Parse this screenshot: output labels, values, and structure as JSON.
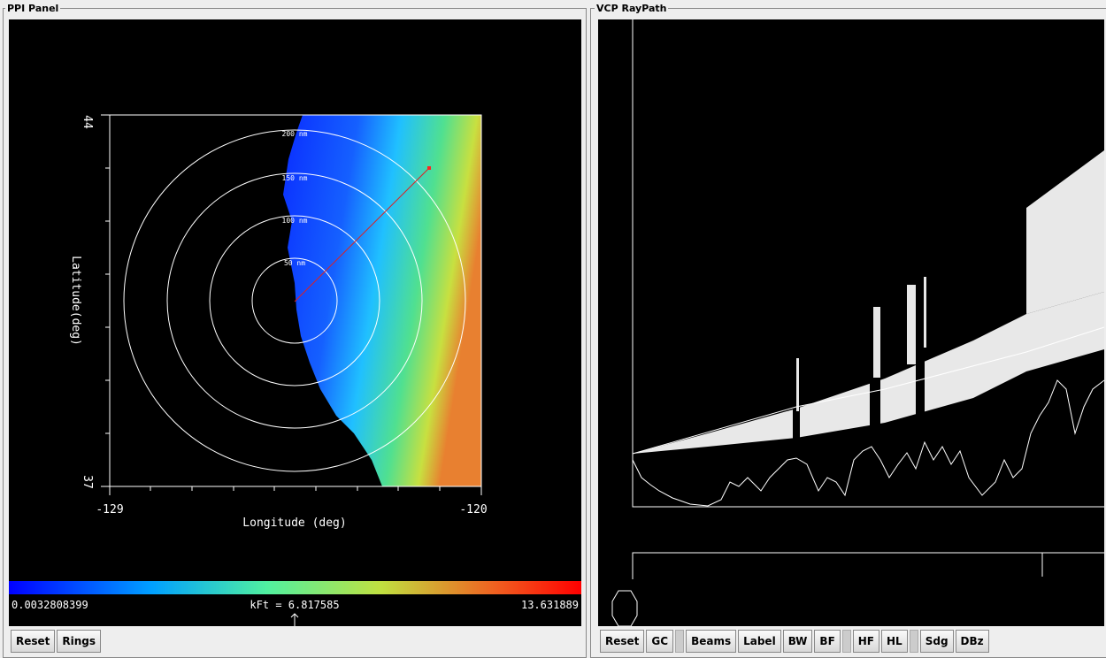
{
  "ppi_panel": {
    "title": "PPI Panel",
    "x_axis": {
      "label": "Longitude (deg)",
      "min": "-129",
      "max": "-120"
    },
    "y_axis": {
      "label": "Latitude(deg)",
      "max": "44",
      "min": "37"
    },
    "rings": [
      "50 nm",
      "100 nm",
      "150 nm",
      "200 nm"
    ],
    "colorbar": {
      "min": "0.0032808399",
      "center": "kFt = 6.817585",
      "max": "13.631889"
    },
    "buttons": [
      "Reset",
      "Rings"
    ]
  },
  "vcp_raypath": {
    "title": "VCP RayPath",
    "buttons": [
      "Reset",
      "GC",
      "Beams",
      "Label",
      "BW",
      "BF",
      "HF",
      "HL",
      "Sdg",
      "DBz"
    ]
  }
}
